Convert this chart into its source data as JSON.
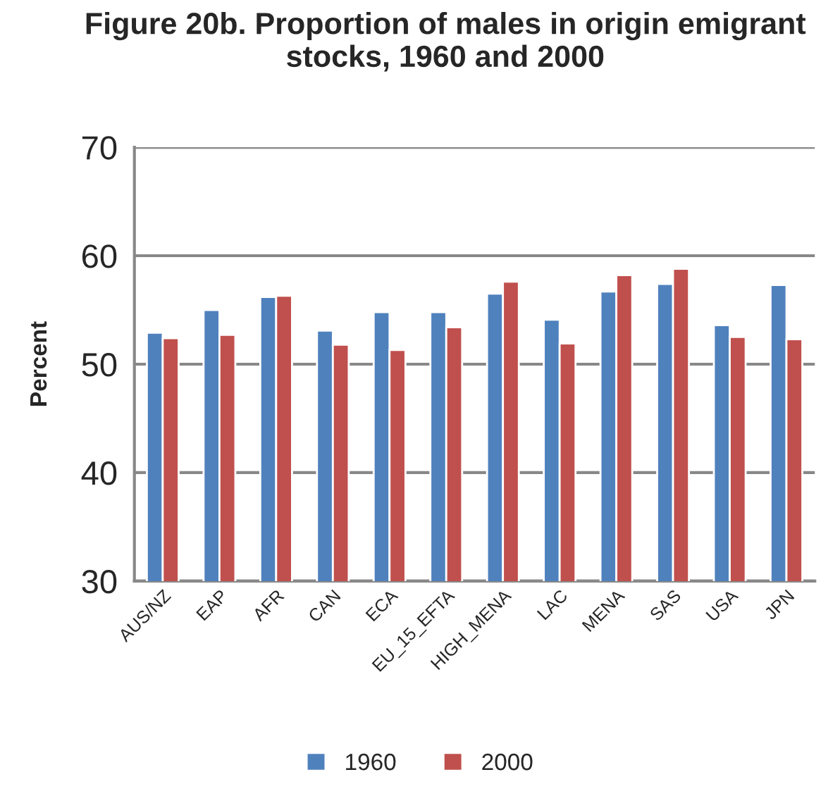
{
  "chart_data": {
    "type": "bar",
    "title": "Figure 20b. Proportion of males in origin emigrant stocks, 1960 and 2000",
    "ylabel": "Percent",
    "categories": [
      "AUS/NZ",
      "EAP",
      "AFR",
      "CAN",
      "ECA",
      "EU_15_EFTA",
      "HIGH_MENA",
      "LAC",
      "MENA",
      "SAS",
      "USA",
      "JPN"
    ],
    "series": [
      {
        "name": "1960",
        "color": "#4f81bd",
        "values": [
          52.9,
          55.0,
          56.2,
          53.1,
          54.8,
          54.8,
          56.5,
          54.1,
          56.7,
          57.4,
          53.6,
          57.3
        ]
      },
      {
        "name": "2000",
        "color": "#c0504d",
        "values": [
          52.4,
          52.7,
          56.3,
          51.8,
          51.3,
          53.4,
          57.6,
          51.9,
          58.2,
          58.8,
          52.5,
          52.3
        ]
      }
    ],
    "ylim": [
      30,
      70
    ],
    "yticks": [
      30,
      40,
      50,
      60,
      70
    ],
    "grid": "y",
    "legend": "bottom"
  }
}
